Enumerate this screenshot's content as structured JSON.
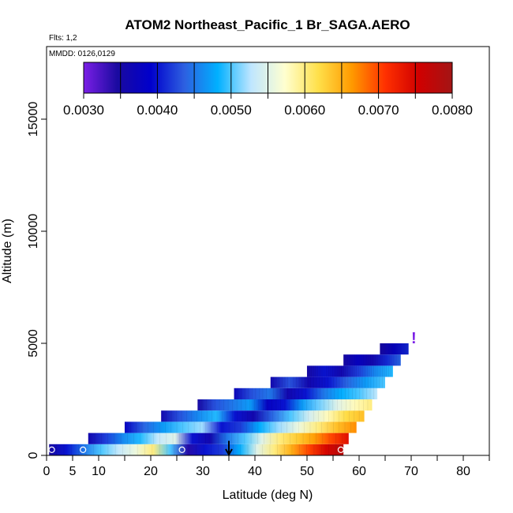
{
  "chart_data": {
    "type": "heatmap",
    "title": "ATOM2 Northeast_Pacific_1 Br_SAGA.AERO",
    "flights_label": "Flts: 1,2",
    "mmdd_label": "MMDD: 0126,0129",
    "xlabel": "Latitude (deg N)",
    "ylabel": "Altitude (m)",
    "xlim": [
      0,
      85
    ],
    "ylim": [
      0,
      17500
    ],
    "x_ticks": [
      0,
      5,
      10,
      20,
      30,
      40,
      50,
      60,
      70,
      80
    ],
    "x_tick_labels": [
      "0",
      "5",
      "10",
      "20",
      "30",
      "40",
      "50",
      "60",
      "70",
      "80"
    ],
    "y_ticks": [
      0,
      5000,
      10000,
      15000
    ],
    "y_tick_labels": [
      "0",
      "5000",
      "10000",
      "15000"
    ],
    "colorbar": {
      "min": 0.003,
      "max": 0.008,
      "tick_values": [
        0.003,
        0.004,
        0.005,
        0.006,
        0.007,
        0.008
      ],
      "tick_labels": [
        "0.0030",
        "0.0040",
        "0.0050",
        "0.0060",
        "0.0070",
        "0.0080"
      ],
      "colors": [
        "#7b1fe6",
        "#1a0aa0",
        "#0000cc",
        "#2d5fe0",
        "#00b0ff",
        "#bfe6ff",
        "#ffffd0",
        "#ffe04a",
        "#ff9a00",
        "#ff3000",
        "#d00000",
        "#a31515"
      ]
    },
    "bands": [
      {
        "alt": 250,
        "lat_start": 0.5,
        "lat_end": 57,
        "values": [
          0.0035,
          0.004,
          0.0045,
          0.005,
          0.0053,
          0.0056,
          0.006,
          0.005,
          0.0034,
          0.004,
          0.0042,
          0.0048,
          0.0055,
          0.006,
          0.0065,
          0.007,
          0.0075,
          0.0078
        ]
      },
      {
        "alt": 750,
        "lat_start": 8,
        "lat_end": 58,
        "values": [
          0.0036,
          0.0042,
          0.0046,
          0.0049,
          0.0053,
          0.0055,
          0.004,
          0.0036,
          0.0045,
          0.005,
          0.0055,
          0.006,
          0.0063,
          0.0066,
          0.007,
          0.0074
        ]
      },
      {
        "alt": 1250,
        "lat_start": 15,
        "lat_end": 59.5,
        "values": [
          0.0038,
          0.0044,
          0.0047,
          0.005,
          0.0052,
          0.004,
          0.0042,
          0.0048,
          0.0052,
          0.0056,
          0.006,
          0.0064,
          0.0067
        ]
      },
      {
        "alt": 1750,
        "lat_start": 22,
        "lat_end": 61,
        "values": [
          0.0036,
          0.0043,
          0.0046,
          0.0049,
          0.004,
          0.0036,
          0.0044,
          0.005,
          0.0054,
          0.0058,
          0.0062,
          0.0064
        ]
      },
      {
        "alt": 2250,
        "lat_start": 29,
        "lat_end": 62.5,
        "values": [
          0.0035,
          0.0043,
          0.0045,
          0.0047,
          0.0038,
          0.004,
          0.0047,
          0.0051,
          0.0055,
          0.0058,
          0.006
        ]
      },
      {
        "alt": 2750,
        "lat_start": 36,
        "lat_end": 63.5,
        "values": [
          0.0037,
          0.0043,
          0.0045,
          0.0036,
          0.004,
          0.0045,
          0.0048,
          0.005,
          0.0053
        ]
      },
      {
        "alt": 3250,
        "lat_start": 43,
        "lat_end": 65,
        "values": [
          0.0036,
          0.0043,
          0.0036,
          0.004,
          0.0044,
          0.0047,
          0.005
        ]
      },
      {
        "alt": 3750,
        "lat_start": 50,
        "lat_end": 66.5,
        "values": [
          0.0035,
          0.004,
          0.0036,
          0.0042,
          0.0046,
          0.0049
        ]
      },
      {
        "alt": 4250,
        "lat_start": 57,
        "lat_end": 68,
        "values": [
          0.0035,
          0.0038,
          0.0036,
          0.0041,
          0.0044
        ]
      },
      {
        "alt": 4750,
        "lat_start": 64,
        "lat_end": 69.5,
        "values": [
          0.0035,
          0.0038,
          0.0041
        ]
      }
    ],
    "markers": [
      {
        "lat": 1,
        "alt": 250
      },
      {
        "lat": 7,
        "alt": 250
      },
      {
        "lat": 26,
        "alt": 250
      },
      {
        "lat": 56.5,
        "alt": 250
      }
    ],
    "arrow": {
      "lat": 35,
      "alt_top": 650,
      "alt_bottom": 0
    },
    "exclamation": {
      "lat": 70.5,
      "alt": 5000,
      "text": "!"
    }
  }
}
